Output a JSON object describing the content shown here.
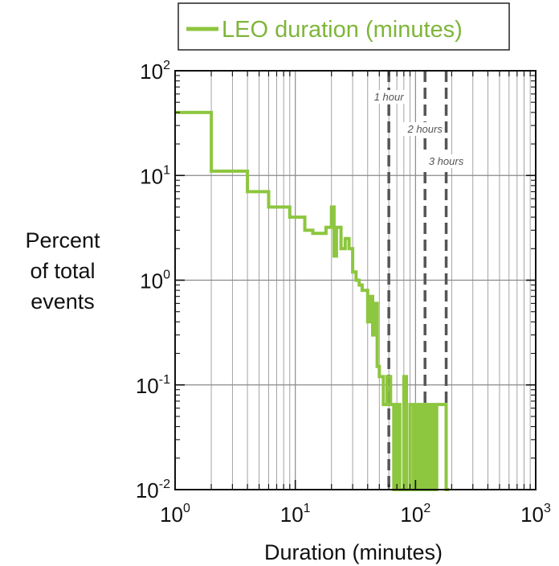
{
  "chart_data": {
    "type": "line",
    "subtype": "step-histogram",
    "xscale": "log",
    "yscale": "log",
    "xlim": [
      1,
      1000
    ],
    "ylim": [
      0.01,
      100
    ],
    "grid": true,
    "xlabel": "Duration (minutes)",
    "ylabel_lines": [
      "Percent",
      "of total",
      "events"
    ],
    "legend": {
      "placement": "top",
      "entries": [
        "LEO duration (minutes)"
      ]
    },
    "xticks": [
      {
        "base": "10",
        "exp": "0",
        "value": 1
      },
      {
        "base": "10",
        "exp": "1",
        "value": 10
      },
      {
        "base": "10",
        "exp": "2",
        "value": 100
      },
      {
        "base": "10",
        "exp": "3",
        "value": 1000
      }
    ],
    "yticks": [
      {
        "base": "10",
        "exp": "-2",
        "value": 0.01
      },
      {
        "base": "10",
        "exp": "-1",
        "value": 0.1
      },
      {
        "base": "10",
        "exp": "0",
        "value": 1
      },
      {
        "base": "10",
        "exp": "1",
        "value": 10
      },
      {
        "base": "10",
        "exp": "2",
        "value": 100
      }
    ],
    "series": [
      {
        "name": "LEO duration (minutes)",
        "color": "#8dc63f",
        "x": [
          1,
          2,
          4,
          6,
          9,
          12,
          14,
          18,
          20,
          21,
          22,
          24,
          26,
          28,
          30,
          32,
          34,
          36,
          38,
          40,
          42,
          44,
          46,
          48,
          50,
          54,
          58,
          62,
          66,
          70,
          74,
          80,
          84,
          90,
          96,
          100,
          104,
          110,
          116,
          120,
          126,
          130,
          136,
          140,
          146,
          150,
          160,
          170,
          180
        ],
        "y": [
          40,
          11,
          7,
          5,
          4,
          3,
          2.8,
          3.2,
          5,
          1.7,
          3.2,
          2,
          2.5,
          2,
          1.2,
          1.0,
          0.9,
          0.8,
          0.8,
          0.4,
          0.7,
          0.3,
          0.6,
          0.15,
          0.12,
          0.065,
          0.12,
          0.065,
          0.01,
          0.065,
          0.01,
          0.12,
          0.01,
          0.065,
          0.01,
          0.065,
          0.01,
          0.065,
          0.01,
          0.065,
          0.01,
          0.065,
          0.01,
          0.065,
          0.01,
          0.065,
          0.065,
          0.065,
          0.01
        ]
      }
    ],
    "reference_lines": [
      {
        "x": 60,
        "label": "1 hour"
      },
      {
        "x": 120,
        "label": "2 hours"
      },
      {
        "x": 180,
        "label": "3 hours"
      }
    ]
  }
}
